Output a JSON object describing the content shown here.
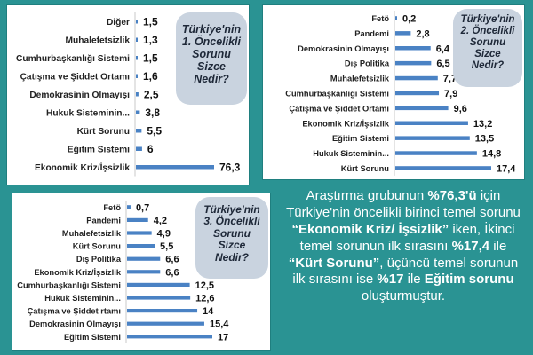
{
  "chart_data": [
    {
      "type": "bar",
      "title": "Türkiye'nin\n1. Öncelikli\nSorunu\nSizce\nNedir?",
      "categories": [
        "Diğer",
        "Muhalefetsizlik",
        "Cumhurbaşkanlığı Sistemi",
        "Çatışma ve Şiddet Ortamı",
        "Demokrasinin Olmayışı",
        "Hukuk Sisteminin...",
        "Kürt Sorunu",
        "Eğitim Sistemi",
        "Ekonomik Kriz/İşsizlik"
      ],
      "values": [
        1.5,
        1.3,
        1.5,
        1.6,
        2.5,
        3.8,
        5.5,
        6,
        76.3
      ],
      "labels": [
        "1,5",
        "1,3",
        "1,5",
        "1,6",
        "2,5",
        "3,8",
        "5,5",
        "6",
        "76,3"
      ]
    },
    {
      "type": "bar",
      "title": "Türkiye'nin\n2. Öncelikli\nSorunu\nSizce\nNedir?",
      "categories": [
        "Fetö",
        "Pandemi",
        "Demokrasinin Olmayışı",
        "Dış Politika",
        "Muhalefetsizlik",
        "Cumhurbaşkanlığı Sistemi",
        "Çatışma ve Şiddet Ortamı",
        "Ekonomik Kriz/İşsizlik",
        "Eğitim Sistemi",
        "Hukuk Sisteminin...",
        "Kürt Sorunu"
      ],
      "values": [
        0.2,
        2.8,
        6.4,
        6.5,
        7.7,
        7.9,
        9.6,
        13.2,
        13.5,
        14.8,
        17.4
      ],
      "labels": [
        "0,2",
        "2,8",
        "6,4",
        "6,5",
        "7,7",
        "7,9",
        "9,6",
        "13,2",
        "13,5",
        "14,8",
        "17,4"
      ]
    },
    {
      "type": "bar",
      "title": "Türkiye'nin\n3. Öncelikli\nSorunu\nSizce\nNedir?",
      "categories": [
        "Fetö",
        "Pandemi",
        "Muhalefetsizlik",
        "Kürt Sorunu",
        "Dış Politika",
        "Ekonomik Kriz/İşsizlik",
        "Cumhurbaşkanlığı Sistemi",
        "Hukuk Sisteminin...",
        "Çatışma ve Şiddet rtamı",
        "Demokrasinin Olmayışı",
        "Eğitim Sistemi"
      ],
      "values": [
        0.7,
        4.2,
        4.9,
        5.5,
        6.6,
        6.6,
        12.5,
        12.6,
        14,
        15.4,
        17
      ],
      "labels": [
        "0,7",
        "4,2",
        "4,9",
        "5,5",
        "6,6",
        "6,6",
        "12,5",
        "12,6",
        "14",
        "15,4",
        "17"
      ]
    }
  ],
  "summary": {
    "t1": "Araştırma grubunun ",
    "b1": "%76,3'ü",
    "t2": " için Türkiye'nin öncelikli birinci temel sorunu ",
    "b2": "“Ekonomik Kriz/ İşsizlik”",
    "t3": " iken, İkinci temel sorunun ilk sırasını ",
    "b3": "%17,4",
    "t4": " ile ",
    "b4": "“Kürt Sorunu”",
    "t5": ", üçüncü temel sorunun ilk sırasını ise ",
    "b5": "%17",
    "t6": " ile ",
    "b6": "Eğitim sorunu",
    "t7": " oluşturmuştur."
  },
  "colors": {
    "background": "#2a9393",
    "bar": "#4a82c4",
    "bubble": "#c9d3df"
  }
}
